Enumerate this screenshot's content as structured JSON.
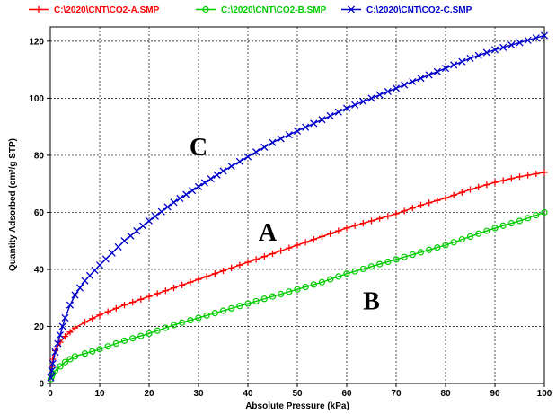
{
  "chart_data": {
    "type": "line",
    "xlabel": "Absolute Pressure (kPa)",
    "ylabel": "Quantity Adsorbed (cm³/g STP)",
    "xlim": [
      0,
      100
    ],
    "ylim": [
      0,
      125
    ],
    "x_ticks": [
      "0",
      "10",
      "20",
      "30",
      "40",
      "50",
      "60",
      "70",
      "80",
      "90",
      "100"
    ],
    "y_ticks": [
      "0",
      "20",
      "40",
      "60",
      "80",
      "100",
      "120"
    ],
    "grid": true,
    "legend_position": "top",
    "series": [
      {
        "name": "C:\\2020\\CNT\\CO2-A.SMP",
        "color": "#ff0000",
        "marker": "plus",
        "x": [
          0.1,
          0.3,
          0.5,
          1,
          2,
          3,
          4,
          5,
          7,
          10,
          15,
          20,
          25,
          30,
          35,
          40,
          45,
          50,
          55,
          60,
          65,
          70,
          75,
          80,
          85,
          90,
          95,
          100
        ],
        "y": [
          3,
          6,
          8.5,
          11.5,
          14.5,
          16.5,
          18,
          19.5,
          21.5,
          24,
          27.5,
          30.5,
          33.5,
          36.5,
          39.5,
          42.5,
          45.5,
          48.5,
          51.5,
          54.5,
          57,
          59.5,
          62.5,
          65,
          68,
          70.5,
          72.5,
          74
        ]
      },
      {
        "name": "C:\\2020\\CNT\\CO2-B.SMP",
        "color": "#00cc00",
        "marker": "circle",
        "x": [
          0.1,
          0.3,
          0.5,
          1,
          2,
          3,
          4,
          5,
          7,
          10,
          15,
          20,
          25,
          30,
          35,
          40,
          45,
          50,
          55,
          60,
          65,
          70,
          75,
          80,
          85,
          90,
          95,
          100
        ],
        "y": [
          1.5,
          2.5,
          3.5,
          4.5,
          6,
          7.5,
          8.5,
          9.5,
          10.5,
          12,
          15,
          17.5,
          20.5,
          23,
          25.5,
          28,
          30.5,
          33,
          35.5,
          38.5,
          41,
          43.5,
          46,
          48.5,
          51.5,
          54.5,
          57,
          60
        ]
      },
      {
        "name": "C:\\2020\\CNT\\CO2-C.SMP",
        "color": "#0000cc",
        "marker": "x",
        "x": [
          0.1,
          0.3,
          0.5,
          1,
          2,
          3,
          4,
          5,
          7,
          10,
          15,
          20,
          25,
          30,
          35,
          40,
          45,
          50,
          55,
          60,
          65,
          70,
          75,
          80,
          85,
          90,
          95,
          100
        ],
        "y": [
          2,
          4.5,
          7,
          11,
          17,
          23,
          27.5,
          31,
          36,
          41.5,
          50,
          57,
          63.5,
          69,
          74.5,
          79.5,
          84.5,
          88.5,
          92.5,
          96.5,
          100,
          103.5,
          107,
          110.5,
          114,
          117,
          119.5,
          122
        ]
      }
    ],
    "annotations": [
      {
        "text": "C",
        "x": 30,
        "y": 80
      },
      {
        "text": "A",
        "x": 44,
        "y": 50
      },
      {
        "text": "B",
        "x": 65,
        "y": 26
      }
    ]
  }
}
